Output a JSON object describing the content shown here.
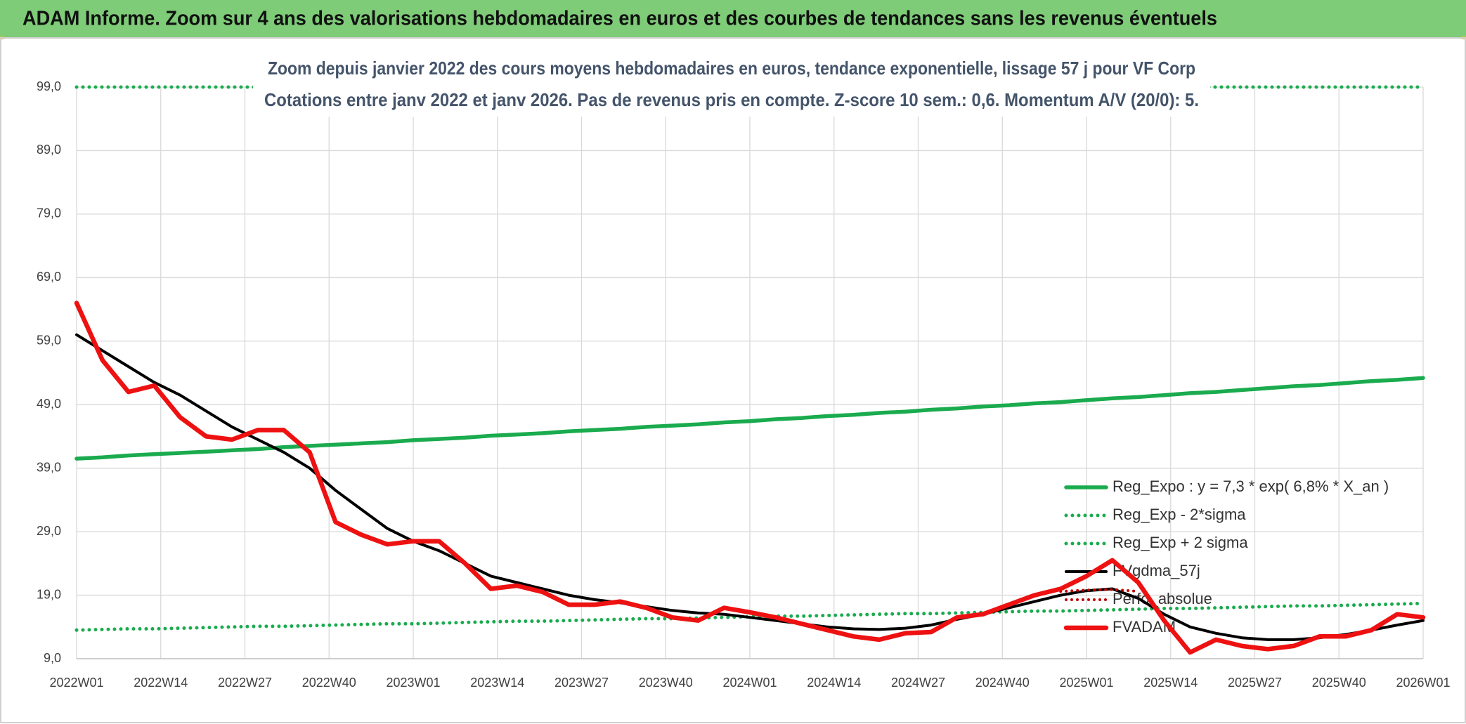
{
  "chart_data": {
    "type": "line",
    "title": "ADAM Informe. Zoom sur 4 ans des valorisations hebdomadaires en euros et des courbes de tendances sans les revenus éventuels",
    "subtitle": [
      "Zoom depuis janvier 2022 des cours moyens hebdomadaires en euros, tendance exponentielle, lissage 57 j pour VF Corp",
      "Cotations entre janv 2022 et janv 2026. Pas de revenus pris en compte. Z-score 10 sem.: 0,6. Momentum A/V (20/0): 5."
    ],
    "x": [
      0,
      4,
      8,
      12,
      16,
      20,
      24,
      28,
      32,
      36,
      40,
      44,
      48,
      52,
      56,
      60,
      64,
      68,
      72,
      76,
      80,
      84,
      88,
      92,
      96,
      100,
      104,
      108,
      112,
      116,
      120,
      124,
      128,
      132,
      136,
      140,
      144,
      148,
      152,
      156,
      160,
      164,
      168,
      172,
      176,
      180,
      184,
      188,
      192,
      196,
      200,
      204,
      208
    ],
    "xlim": [
      0,
      208
    ],
    "xticks": [
      {
        "value": 0,
        "label": "2022W01"
      },
      {
        "value": 13,
        "label": "2022W14"
      },
      {
        "value": 26,
        "label": "2022W27"
      },
      {
        "value": 39,
        "label": "2022W40"
      },
      {
        "value": 52,
        "label": "2023W01"
      },
      {
        "value": 65,
        "label": "2023W14"
      },
      {
        "value": 78,
        "label": "2023W27"
      },
      {
        "value": 91,
        "label": "2023W40"
      },
      {
        "value": 104,
        "label": "2024W01"
      },
      {
        "value": 117,
        "label": "2024W14"
      },
      {
        "value": 130,
        "label": "2024W27"
      },
      {
        "value": 143,
        "label": "2024W40"
      },
      {
        "value": 156,
        "label": "2025W01"
      },
      {
        "value": 169,
        "label": "2025W14"
      },
      {
        "value": 182,
        "label": "2025W27"
      },
      {
        "value": 195,
        "label": "2025W40"
      },
      {
        "value": 208,
        "label": "2026W01"
      }
    ],
    "ylim": [
      9,
      99
    ],
    "yticks": [
      {
        "value": 9,
        "label": "9,0"
      },
      {
        "value": 19,
        "label": "19,0"
      },
      {
        "value": 29,
        "label": "29,0"
      },
      {
        "value": 39,
        "label": "39,0"
      },
      {
        "value": 49,
        "label": "49,0"
      },
      {
        "value": 59,
        "label": "59,0"
      },
      {
        "value": 69,
        "label": "69,0"
      },
      {
        "value": 79,
        "label": "79,0"
      },
      {
        "value": 89,
        "label": "89,0"
      },
      {
        "value": 99,
        "label": "99,0"
      }
    ],
    "grid": true,
    "legend": "lower right",
    "series": [
      {
        "name": "Reg_Expo : y = 7,3 * exp( 6,8% *  X_an )",
        "color": "#1aab4e",
        "style": "solid",
        "values": [
          40.5,
          40.7,
          41.0,
          41.2,
          41.4,
          41.6,
          41.8,
          42.0,
          42.3,
          42.5,
          42.7,
          42.9,
          43.1,
          43.4,
          43.6,
          43.8,
          44.1,
          44.3,
          44.5,
          44.8,
          45.0,
          45.2,
          45.5,
          45.7,
          45.9,
          46.2,
          46.4,
          46.7,
          46.9,
          47.2,
          47.4,
          47.7,
          47.9,
          48.2,
          48.4,
          48.7,
          48.9,
          49.2,
          49.4,
          49.7,
          50.0,
          50.2,
          50.5,
          50.8,
          51.0,
          51.3,
          51.6,
          51.9,
          52.1,
          52.4,
          52.7,
          52.9,
          53.2
        ]
      },
      {
        "name": "Reg_Exp - 2*sigma",
        "color": "#1aab4e",
        "style": "dotted",
        "values": [
          13.5,
          13.6,
          13.7,
          13.7,
          13.8,
          13.9,
          14.0,
          14.1,
          14.1,
          14.2,
          14.3,
          14.4,
          14.5,
          14.5,
          14.6,
          14.7,
          14.8,
          14.9,
          14.9,
          15.0,
          15.1,
          15.2,
          15.3,
          15.3,
          15.4,
          15.5,
          15.6,
          15.7,
          15.7,
          15.8,
          15.9,
          16.0,
          16.1,
          16.1,
          16.2,
          16.3,
          16.4,
          16.5,
          16.5,
          16.6,
          16.7,
          16.8,
          16.9,
          16.9,
          17.0,
          17.1,
          17.2,
          17.3,
          17.3,
          17.4,
          17.5,
          17.6,
          17.7
        ]
      },
      {
        "name": "Reg_Exp + 2 sigma",
        "color": "#1aab4e",
        "style": "dotted",
        "x": [
          0,
          208
        ],
        "values": [
          99,
          99
        ]
      },
      {
        "name": "FVgdma_57j",
        "color": "#000000",
        "style": "solid",
        "values": [
          60,
          57.5,
          55,
          52.5,
          50.5,
          48,
          45.5,
          43.5,
          41.5,
          39,
          35.5,
          32.5,
          29.5,
          27.5,
          26,
          24,
          22,
          21,
          20,
          19,
          18.3,
          17.8,
          17.2,
          16.6,
          16.2,
          16,
          15.5,
          15,
          14.5,
          14,
          13.7,
          13.6,
          13.8,
          14.3,
          15.2,
          16,
          17,
          18,
          19,
          19.7,
          20,
          18.5,
          16,
          14,
          13,
          12.3,
          12,
          12,
          12.3,
          12.8,
          13.5,
          14.3,
          15
        ]
      },
      {
        "name": "Perfo_absolue",
        "color": "#c00000",
        "style": "dotted",
        "x": [
          152,
          156,
          160,
          164
        ],
        "values": [
          19.6,
          19.8,
          19.9,
          19.6
        ]
      },
      {
        "name": "FVADAM",
        "color": "#ee1111",
        "style": "solid",
        "values": [
          65,
          56,
          51,
          52,
          47,
          44,
          43.5,
          45,
          45,
          41.5,
          30.5,
          28.5,
          27,
          27.5,
          27.5,
          24,
          20,
          20.5,
          19.5,
          17.5,
          17.5,
          18,
          17,
          15.5,
          15,
          17,
          16.3,
          15.5,
          14.5,
          13.5,
          12.5,
          12,
          13,
          13.2,
          15.5,
          16,
          17.5,
          19,
          20,
          22,
          24.5,
          21,
          15,
          10,
          12,
          11,
          10.5,
          11,
          12.5,
          12.5,
          13.5,
          16,
          15.5
        ]
      }
    ]
  }
}
